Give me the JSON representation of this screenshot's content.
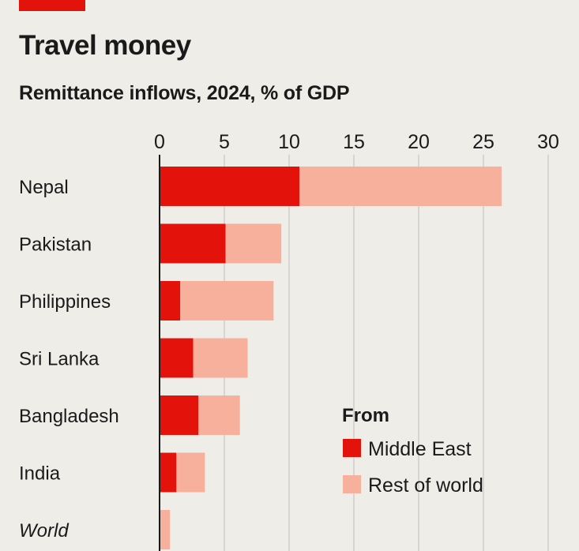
{
  "colors": {
    "accent": "#e3120b",
    "middle_east": "#e3120b",
    "rest_of_world": "#f6b09b",
    "grid": "#c9c6c0",
    "axis": "#1a1a1a"
  },
  "chart_data": {
    "type": "bar",
    "orientation": "horizontal",
    "stacked": true,
    "title": "Travel money",
    "subtitle": "Remittance inflows, 2024, % of GDP",
    "xlim": [
      0,
      30
    ],
    "xticks": [
      0,
      5,
      10,
      15,
      20,
      25,
      30
    ],
    "grid": true,
    "categories": [
      "Nepal",
      "Pakistan",
      "Philippines",
      "Sri Lanka",
      "Bangladesh",
      "India",
      "World"
    ],
    "italic_categories": [
      "World"
    ],
    "series": [
      {
        "name": "Middle East",
        "color": "#e3120b",
        "values": [
          10.8,
          5.1,
          1.6,
          2.6,
          3.0,
          1.3,
          0.0
        ]
      },
      {
        "name": "Rest of world",
        "color": "#f6b09b",
        "values": [
          15.6,
          4.3,
          7.2,
          4.2,
          3.2,
          2.2,
          0.8
        ]
      }
    ],
    "legend": {
      "title": "From",
      "placement": "bottom-right",
      "items": [
        "Middle East",
        "Rest of world"
      ]
    }
  }
}
